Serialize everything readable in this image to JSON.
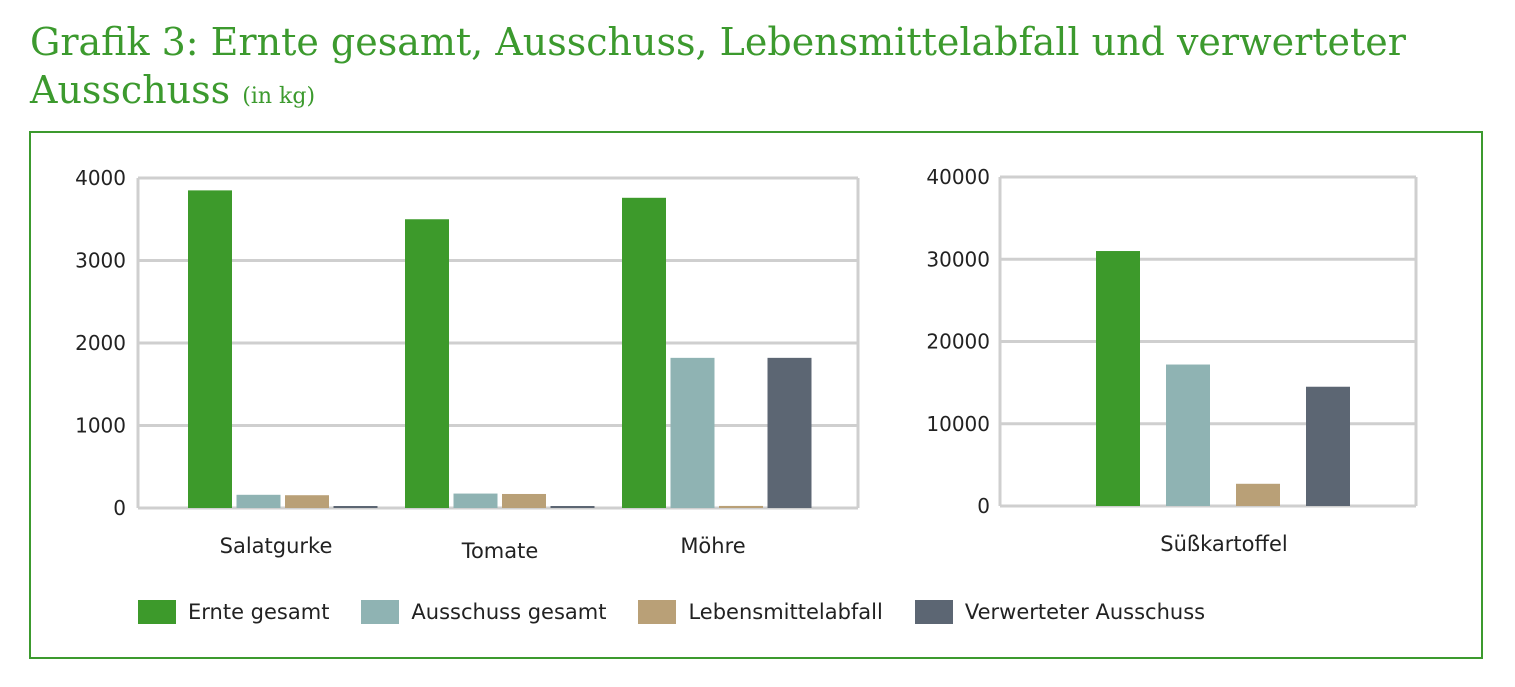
{
  "title": {
    "main": "Grafik 3: Ernte gesamt, Ausschuss, Lebensmittelabfall und verwerteter Ausschuss",
    "unit": "(in kg)"
  },
  "colors": {
    "accent": "#3c9a2e",
    "ernte": "#3d9a2b",
    "ausschuss": "#8fb3b3",
    "abfall": "#b9a077",
    "verwertet": "#5c6673",
    "grid": "#cfcfcf"
  },
  "chart_data": [
    {
      "type": "bar",
      "categories": [
        "Salatgurke",
        "Tomate",
        "Möhre"
      ],
      "ylim": [
        0,
        4000
      ],
      "yticks": [
        "0",
        "1000",
        "2000",
        "3000",
        "4000"
      ],
      "grid": true,
      "series": [
        {
          "name": "Ernte gesamt",
          "values": [
            3850,
            3500,
            3760
          ]
        },
        {
          "name": "Ausschuss gesamt",
          "values": [
            160,
            175,
            1820
          ]
        },
        {
          "name": "Lebensmittelabfall",
          "values": [
            155,
            170,
            25
          ]
        },
        {
          "name": "Verwerteter Ausschuss",
          "values": [
            20,
            20,
            1820
          ]
        }
      ]
    },
    {
      "type": "bar",
      "categories": [
        "Süßkartoffel"
      ],
      "ylim": [
        0,
        40000
      ],
      "yticks": [
        "0",
        "10000",
        "20000",
        "30000",
        "40000"
      ],
      "grid": true,
      "series": [
        {
          "name": "Ernte gesamt",
          "values": [
            31000
          ]
        },
        {
          "name": "Ausschuss gesamt",
          "values": [
            17200
          ]
        },
        {
          "name": "Lebensmittelabfall",
          "values": [
            2700
          ]
        },
        {
          "name": "Verwerteter Ausschuss",
          "values": [
            14500
          ]
        }
      ]
    }
  ],
  "legend": {
    "placement": "bottom",
    "items": [
      {
        "label": "Ernte gesamt",
        "color": "#3d9a2b"
      },
      {
        "label": "Ausschuss gesamt",
        "color": "#8fb3b3"
      },
      {
        "label": "Lebensmittelabfall",
        "color": "#b9a077"
      },
      {
        "label": "Verwerteter Ausschuss",
        "color": "#5c6673"
      }
    ]
  }
}
